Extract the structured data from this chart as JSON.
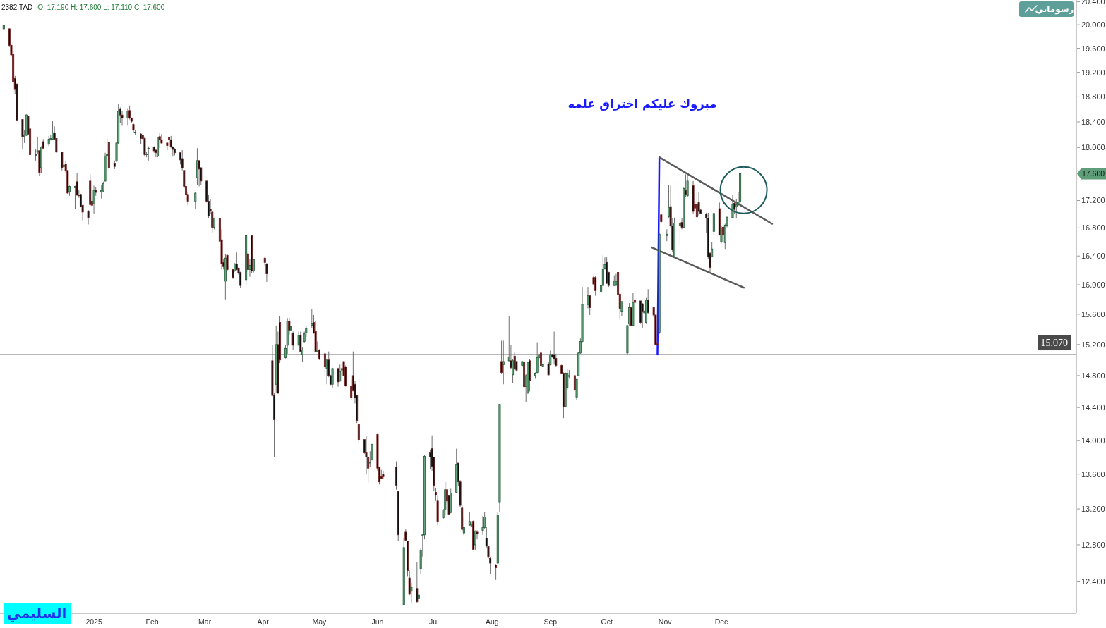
{
  "chart_data": {
    "type": "candlestick",
    "title": "2382.TAD",
    "subtitle": "O: 17.190 H: 17.600 L: 17.110 C: 17.600",
    "annotations": [
      "مبروك عليكم اختراق علمه",
      "السليمي",
      "رسوماتي",
      "17.600"
    ],
    "log": true,
    "xlim": [
      "2024-11-12",
      "2026-06-08"
    ],
    "ylim": [
      12.07,
      20.43
    ],
    "xticks": [
      {
        "value": "2025-01-01",
        "label": "2025"
      },
      {
        "value": "2025-02-01",
        "label": "Feb"
      },
      {
        "value": "2025-03-01",
        "label": "Mar"
      },
      {
        "value": "2025-04-01",
        "label": "Apr"
      },
      {
        "value": "2025-05-01",
        "label": "May"
      },
      {
        "value": "2025-06-01",
        "label": "Jun"
      },
      {
        "value": "2025-07-01",
        "label": "Jul"
      },
      {
        "value": "2025-08-01",
        "label": "Aug"
      },
      {
        "value": "2025-09-01",
        "label": "Sep"
      },
      {
        "value": "2025-10-01",
        "label": "Oct"
      },
      {
        "value": "2025-11-01",
        "label": "Nov"
      },
      {
        "value": "2025-12-01",
        "label": "Dec"
      }
    ],
    "yticks": [
      {
        "value": 12.4,
        "label": "12.400"
      },
      {
        "value": 12.8,
        "label": "12.800"
      },
      {
        "value": 13.2,
        "label": "13.200"
      },
      {
        "value": 13.6,
        "label": "13.600"
      },
      {
        "value": 14.0,
        "label": "14.000"
      },
      {
        "value": 14.4,
        "label": "14.400"
      },
      {
        "value": 14.8,
        "label": "14.800"
      },
      {
        "value": 15.2,
        "label": "15.200"
      },
      {
        "value": 15.6,
        "label": "15.600"
      },
      {
        "value": 16.0,
        "label": "16.000"
      },
      {
        "value": 16.4,
        "label": "16.400"
      },
      {
        "value": 16.8,
        "label": "16.800"
      },
      {
        "value": 17.2,
        "label": "17.200"
      },
      {
        "value": 18.0,
        "label": "18.000"
      },
      {
        "value": 18.4,
        "label": "18.400"
      },
      {
        "value": 18.8,
        "label": "18.800"
      },
      {
        "value": 19.2,
        "label": "19.200"
      },
      {
        "value": 19.6,
        "label": "19.600"
      },
      {
        "value": 20.0,
        "label": "20.000"
      },
      {
        "value": 20.4,
        "label": "20.400"
      }
    ],
    "ref_lines": [
      {
        "axis": "y",
        "value": 15.07,
        "label": "15.070",
        "color": "#9e9e9e"
      }
    ],
    "series": [
      {
        "type": "line",
        "x": [
          "2025-10-28",
          "2025-10-29"
        ],
        "values": [
          15.07,
          17.85
        ],
        "color": "#1a1aff"
      },
      {
        "type": "line",
        "x": [
          "2025-10-29",
          "2025-12-28"
        ],
        "values": [
          17.85,
          16.86
        ],
        "color": "#5a5a5a"
      },
      {
        "type": "line",
        "x": [
          "2025-10-25",
          "2025-12-13"
        ],
        "values": [
          16.52,
          15.96
        ],
        "color": "#5a5a5a"
      }
    ],
    "x": [
      "2024-11-14",
      "2024-11-17",
      "2024-11-18",
      "2024-11-19",
      "2024-11-20",
      "2024-11-21",
      "2024-11-24",
      "2024-11-25",
      "2024-11-26",
      "2024-11-27",
      "2024-11-28",
      "2024-12-01",
      "2024-12-02",
      "2024-12-03",
      "2024-12-04",
      "2024-12-05",
      "2024-12-08",
      "2024-12-09",
      "2024-12-10",
      "2024-12-11",
      "2024-12-12",
      "2024-12-15",
      "2024-12-16",
      "2024-12-17",
      "2024-12-18",
      "2024-12-19",
      "2024-12-22",
      "2024-12-23",
      "2024-12-24",
      "2024-12-25",
      "2024-12-26",
      "2024-12-29",
      "2024-12-30",
      "2024-12-31",
      "2025-01-01",
      "2025-01-02",
      "2025-01-05",
      "2025-01-06",
      "2025-01-07",
      "2025-01-08",
      "2025-01-09",
      "2025-01-12",
      "2025-01-13",
      "2025-01-14",
      "2025-01-15",
      "2025-01-16",
      "2025-01-19",
      "2025-01-20",
      "2025-01-21",
      "2025-01-22",
      "2025-01-23",
      "2025-01-26",
      "2025-01-27",
      "2025-01-28",
      "2025-01-29",
      "2025-01-30",
      "2025-02-02",
      "2025-02-03",
      "2025-02-04",
      "2025-02-05",
      "2025-02-06",
      "2025-02-09",
      "2025-02-10",
      "2025-02-11",
      "2025-02-12",
      "2025-02-13",
      "2025-02-16",
      "2025-02-17",
      "2025-02-18",
      "2025-02-19",
      "2025-02-20",
      "2025-02-24",
      "2025-02-25",
      "2025-02-26",
      "2025-02-27",
      "2025-03-02",
      "2025-03-03",
      "2025-03-04",
      "2025-03-05",
      "2025-03-06",
      "2025-03-09",
      "2025-03-10",
      "2025-03-11",
      "2025-03-12",
      "2025-03-13",
      "2025-03-16",
      "2025-03-17",
      "2025-03-18",
      "2025-03-19",
      "2025-03-20",
      "2025-03-23",
      "2025-03-24",
      "2025-03-25",
      "2025-03-26",
      "2025-03-27",
      "2025-04-02",
      "2025-04-03",
      "2025-04-06",
      "2025-04-07",
      "2025-04-08",
      "2025-04-09",
      "2025-04-10",
      "2025-04-13",
      "2025-04-14",
      "2025-04-15",
      "2025-04-16",
      "2025-04-17",
      "2025-04-20",
      "2025-04-21",
      "2025-04-22",
      "2025-04-23",
      "2025-04-24",
      "2025-04-27",
      "2025-04-28",
      "2025-04-29",
      "2025-04-30",
      "2025-05-01",
      "2025-05-04",
      "2025-05-05",
      "2025-05-06",
      "2025-05-07",
      "2025-05-08",
      "2025-05-11",
      "2025-05-12",
      "2025-05-13",
      "2025-05-14",
      "2025-05-15",
      "2025-05-18",
      "2025-05-19",
      "2025-05-20",
      "2025-05-21",
      "2025-05-22",
      "2025-05-25",
      "2025-05-26",
      "2025-05-27",
      "2025-05-28",
      "2025-05-29",
      "2025-06-01",
      "2025-06-02",
      "2025-06-03",
      "2025-06-04",
      "2025-06-11",
      "2025-06-12",
      "2025-06-15",
      "2025-06-16",
      "2025-06-17",
      "2025-06-18",
      "2025-06-19",
      "2025-06-22",
      "2025-06-23",
      "2025-06-24",
      "2025-06-25",
      "2025-06-26",
      "2025-06-29",
      "2025-06-30",
      "2025-07-01",
      "2025-07-02",
      "2025-07-03",
      "2025-07-06",
      "2025-07-07",
      "2025-07-08",
      "2025-07-09",
      "2025-07-10",
      "2025-07-13",
      "2025-07-14",
      "2025-07-15",
      "2025-07-16",
      "2025-07-17",
      "2025-07-20",
      "2025-07-21",
      "2025-07-22",
      "2025-07-23",
      "2025-07-24",
      "2025-07-27",
      "2025-07-28",
      "2025-07-29",
      "2025-07-30",
      "2025-07-31",
      "2025-08-03",
      "2025-08-04",
      "2025-08-05",
      "2025-08-06",
      "2025-08-07",
      "2025-08-10",
      "2025-08-11",
      "2025-08-12",
      "2025-08-13",
      "2025-08-14",
      "2025-08-17",
      "2025-08-18",
      "2025-08-19",
      "2025-08-20",
      "2025-08-21",
      "2025-08-24",
      "2025-08-25",
      "2025-08-26",
      "2025-08-27",
      "2025-08-28",
      "2025-08-31",
      "2025-09-01",
      "2025-09-02",
      "2025-09-03",
      "2025-09-04",
      "2025-09-07",
      "2025-09-08",
      "2025-09-09",
      "2025-09-10",
      "2025-09-11",
      "2025-09-14",
      "2025-09-15",
      "2025-09-16",
      "2025-09-17",
      "2025-09-18",
      "2025-09-21",
      "2025-09-22",
      "2025-09-24",
      "2025-09-25",
      "2025-09-28",
      "2025-09-29",
      "2025-09-30",
      "2025-10-01",
      "2025-10-02",
      "2025-10-05",
      "2025-10-06",
      "2025-10-07",
      "2025-10-08",
      "2025-10-09",
      "2025-10-12",
      "2025-10-13",
      "2025-10-14",
      "2025-10-15",
      "2025-10-16",
      "2025-10-19",
      "2025-10-20",
      "2025-10-21",
      "2025-10-22",
      "2025-10-23",
      "2025-10-26",
      "2025-10-27",
      "2025-10-28",
      "2025-10-29",
      "2025-10-30",
      "2025-11-02",
      "2025-11-03",
      "2025-11-04",
      "2025-11-05",
      "2025-11-06",
      "2025-11-09",
      "2025-11-10",
      "2025-11-11",
      "2025-11-12",
      "2025-11-13",
      "2025-11-16",
      "2025-11-17",
      "2025-11-18",
      "2025-11-19",
      "2025-11-20",
      "2025-11-23",
      "2025-11-24",
      "2025-11-25",
      "2025-11-26",
      "2025-11-27",
      "2025-11-30",
      "2025-12-01",
      "2025-12-02",
      "2025-12-03",
      "2025-12-04",
      "2025-12-07",
      "2025-12-08",
      "2025-12-09",
      "2025-12-10",
      "2025-12-11"
    ],
    "ohlc": [
      [
        19.93,
        20.0,
        19.92,
        19.99
      ],
      [
        19.93,
        19.94,
        19.62,
        19.65
      ],
      [
        19.65,
        19.66,
        19.46,
        19.49
      ],
      [
        19.5,
        19.56,
        19.03,
        19.04
      ],
      [
        19.1,
        19.14,
        18.85,
        18.93
      ],
      [
        19.01,
        19.01,
        18.41,
        18.43
      ],
      [
        18.44,
        18.44,
        17.97,
        18.17
      ],
      [
        18.17,
        18.27,
        18.07,
        18.19
      ],
      [
        18.19,
        18.52,
        18.18,
        18.51
      ],
      [
        18.49,
        18.49,
        18.19,
        18.21
      ],
      [
        18.29,
        18.3,
        17.85,
        17.89
      ],
      [
        17.88,
        17.97,
        17.8,
        17.89
      ],
      [
        17.93,
        18.17,
        17.9,
        17.95
      ],
      [
        17.95,
        17.96,
        17.57,
        17.62
      ],
      [
        17.69,
        18.02,
        17.61,
        18.01
      ],
      [
        18.09,
        18.13,
        17.97,
        17.99
      ],
      [
        18.05,
        18.18,
        18.02,
        18.13
      ],
      [
        18.13,
        18.19,
        18.11,
        18.14
      ],
      [
        18.13,
        18.41,
        18.13,
        18.23
      ],
      [
        18.23,
        18.33,
        18.12,
        18.13
      ],
      [
        18.14,
        18.14,
        17.92,
        17.93
      ],
      [
        17.93,
        17.93,
        17.65,
        17.69
      ],
      [
        17.71,
        17.81,
        17.7,
        17.73
      ],
      [
        17.75,
        17.8,
        17.61,
        17.65
      ],
      [
        17.65,
        17.65,
        17.3,
        17.31
      ],
      [
        17.33,
        17.42,
        17.27,
        17.41
      ],
      [
        17.39,
        17.42,
        17.07,
        17.41
      ],
      [
        17.48,
        17.61,
        17.27,
        17.28
      ],
      [
        17.28,
        17.35,
        17.24,
        17.27
      ],
      [
        17.29,
        17.3,
        17.1,
        17.11
      ],
      [
        17.13,
        17.13,
        16.91,
        17.03
      ],
      [
        17.04,
        17.06,
        16.85,
        16.95
      ],
      [
        17.49,
        17.59,
        17.12,
        17.14
      ],
      [
        17.19,
        17.21,
        17.11,
        17.13
      ],
      [
        17.15,
        17.42,
        17.0,
        17.35
      ],
      [
        17.35,
        17.4,
        17.27,
        17.32
      ],
      [
        17.33,
        17.43,
        17.23,
        17.35
      ],
      [
        17.34,
        17.48,
        17.33,
        17.45
      ],
      [
        17.49,
        17.92,
        17.48,
        17.87
      ],
      [
        17.87,
        18.14,
        17.86,
        17.89
      ],
      [
        18.08,
        18.08,
        17.65,
        17.69
      ],
      [
        17.76,
        17.8,
        17.67,
        17.71
      ],
      [
        17.79,
        18.08,
        17.78,
        18.07
      ],
      [
        18.07,
        18.68,
        18.05,
        18.57
      ],
      [
        18.61,
        18.63,
        18.38,
        18.51
      ],
      [
        18.51,
        18.57,
        18.34,
        18.46
      ],
      [
        18.46,
        18.62,
        18.34,
        18.57
      ],
      [
        18.58,
        18.66,
        18.44,
        18.46
      ],
      [
        18.46,
        18.47,
        18.38,
        18.41
      ],
      [
        18.36,
        18.38,
        18.23,
        18.27
      ],
      [
        18.23,
        18.27,
        18.19,
        18.24
      ],
      [
        18.21,
        18.23,
        18.05,
        18.14
      ],
      [
        18.19,
        18.2,
        18.12,
        18.14
      ],
      [
        18.14,
        18.17,
        17.86,
        17.89
      ],
      [
        17.89,
        17.93,
        17.85,
        17.9
      ],
      [
        17.98,
        18.02,
        17.8,
        17.99
      ],
      [
        18.01,
        18.02,
        17.92,
        17.95
      ],
      [
        17.96,
        17.97,
        17.85,
        17.92
      ],
      [
        17.87,
        18.16,
        17.85,
        18.16
      ],
      [
        18.17,
        18.23,
        17.99,
        18.12
      ],
      [
        18.12,
        18.21,
        18.05,
        18.07
      ],
      [
        18.07,
        18.08,
        17.96,
        18.03
      ],
      [
        18.16,
        18.18,
        18.11,
        18.12
      ],
      [
        18.12,
        18.18,
        17.99,
        18.01
      ],
      [
        18.01,
        18.02,
        17.86,
        17.97
      ],
      [
        17.97,
        17.99,
        17.88,
        17.92
      ],
      [
        17.92,
        17.93,
        17.74,
        17.81
      ],
      [
        17.83,
        17.96,
        17.65,
        17.69
      ],
      [
        17.65,
        17.65,
        17.38,
        17.41
      ],
      [
        17.41,
        17.42,
        17.23,
        17.29
      ],
      [
        17.29,
        17.32,
        17.13,
        17.19
      ],
      [
        17.19,
        17.32,
        17.07,
        17.31
      ],
      [
        17.54,
        17.99,
        17.43,
        17.8
      ],
      [
        17.8,
        17.8,
        17.41,
        17.67
      ],
      [
        17.69,
        17.7,
        17.43,
        17.49
      ],
      [
        17.49,
        17.49,
        17.17,
        17.19
      ],
      [
        17.19,
        17.28,
        16.94,
        16.97
      ],
      [
        17.07,
        17.22,
        17.0,
        17.05
      ],
      [
        17.03,
        17.04,
        16.73,
        16.81
      ],
      [
        16.81,
        16.95,
        16.78,
        16.94
      ],
      [
        16.94,
        16.95,
        16.6,
        16.61
      ],
      [
        16.63,
        16.78,
        16.21,
        16.29
      ],
      [
        16.31,
        16.36,
        16.21,
        16.25
      ],
      [
        16.05,
        16.43,
        15.8,
        16.37
      ],
      [
        16.41,
        16.42,
        16.19,
        16.21
      ],
      [
        16.21,
        16.22,
        16.08,
        16.1
      ],
      [
        16.19,
        16.3,
        16.18,
        16.29
      ],
      [
        16.29,
        16.45,
        16.2,
        16.21
      ],
      [
        16.23,
        16.24,
        16.14,
        16.16
      ],
      [
        16.17,
        16.18,
        15.96,
        15.99
      ],
      [
        16.07,
        16.7,
        15.99,
        16.69
      ],
      [
        16.43,
        16.45,
        16.18,
        16.21
      ],
      [
        16.21,
        16.36,
        16.11,
        16.27
      ],
      [
        16.69,
        16.7,
        16.16,
        16.19
      ],
      [
        16.19,
        16.36,
        16.17,
        16.35
      ],
      [
        16.37,
        16.38,
        16.26,
        16.31
      ],
      [
        16.29,
        16.3,
        16.04,
        16.15
      ],
      [
        14.99,
        15.19,
        14.54,
        14.55
      ],
      [
        14.55,
        14.58,
        13.8,
        14.25
      ],
      [
        14.69,
        15.45,
        14.58,
        15.2
      ],
      [
        15.2,
        15.37,
        14.57,
        14.58
      ],
      [
        15.49,
        15.57,
        14.96,
        15.0
      ],
      [
        15.03,
        15.19,
        15.02,
        15.15
      ],
      [
        15.19,
        15.55,
        15.08,
        15.51
      ],
      [
        15.51,
        15.55,
        15.33,
        15.39
      ],
      [
        15.39,
        15.55,
        15.26,
        15.44
      ],
      [
        15.35,
        15.37,
        15.13,
        15.19
      ],
      [
        15.19,
        15.37,
        15.19,
        15.32
      ],
      [
        15.32,
        15.37,
        15.1,
        15.11
      ],
      [
        15.07,
        15.16,
        14.98,
        15.13
      ],
      [
        15.24,
        15.37,
        15.22,
        15.34
      ],
      [
        15.35,
        15.45,
        15.3,
        15.41
      ],
      [
        15.45,
        15.67,
        15.42,
        15.48
      ],
      [
        15.49,
        15.59,
        15.34,
        15.35
      ],
      [
        15.37,
        15.51,
        15.1,
        15.11
      ],
      [
        15.11,
        15.24,
        15.1,
        15.13
      ],
      [
        15.13,
        15.14,
        15.0,
        15.01
      ],
      [
        15.08,
        15.11,
        14.8,
        14.91
      ],
      [
        14.89,
        15.01,
        14.69,
        15.0
      ],
      [
        15.0,
        15.11,
        14.78,
        14.8
      ],
      [
        14.8,
        14.81,
        14.68,
        14.69
      ],
      [
        14.69,
        14.9,
        14.65,
        14.89
      ],
      [
        14.89,
        14.9,
        14.66,
        14.72
      ],
      [
        14.73,
        14.94,
        14.72,
        14.85
      ],
      [
        14.87,
        14.96,
        14.8,
        14.89
      ],
      [
        14.98,
        14.98,
        14.79,
        14.8
      ],
      [
        14.91,
        14.93,
        14.66,
        14.67
      ],
      [
        14.67,
        14.75,
        14.5,
        14.52
      ],
      [
        14.8,
        15.11,
        14.6,
        14.61
      ],
      [
        14.69,
        14.73,
        14.45,
        14.52
      ],
      [
        14.55,
        14.56,
        14.21,
        14.24
      ],
      [
        14.19,
        14.21,
        13.98,
        14.01
      ],
      [
        14.01,
        14.01,
        13.84,
        13.85
      ],
      [
        13.85,
        14.05,
        13.6,
        13.8
      ],
      [
        13.8,
        13.8,
        13.5,
        13.67
      ],
      [
        13.73,
        13.87,
        13.68,
        13.74
      ],
      [
        13.77,
        13.96,
        13.76,
        13.95
      ],
      [
        14.07,
        14.08,
        13.64,
        13.67
      ],
      [
        13.68,
        13.68,
        13.48,
        13.51
      ],
      [
        13.57,
        13.65,
        13.54,
        13.55
      ],
      [
        13.6,
        13.64,
        13.54,
        13.57
      ],
      [
        13.68,
        13.75,
        13.42,
        13.47
      ],
      [
        13.4,
        13.4,
        12.84,
        12.91
      ],
      [
        12.16,
        12.88,
        12.15,
        12.77
      ],
      [
        12.94,
        12.97,
        12.84,
        12.85
      ],
      [
        12.84,
        12.84,
        12.46,
        12.52
      ],
      [
        12.44,
        12.52,
        12.26,
        12.27
      ],
      [
        12.3,
        12.39,
        12.18,
        12.34
      ],
      [
        12.33,
        12.61,
        12.18,
        12.19
      ],
      [
        12.22,
        12.31,
        12.18,
        12.26
      ],
      [
        12.54,
        12.76,
        12.48,
        12.74
      ],
      [
        12.9,
        12.92,
        12.67,
        12.91
      ],
      [
        12.91,
        13.83,
        12.86,
        13.81
      ],
      [
        13.85,
        13.89,
        13.66,
        13.8
      ],
      [
        13.9,
        14.06,
        13.64,
        13.69
      ],
      [
        13.8,
        13.8,
        13.4,
        13.47
      ],
      [
        13.39,
        13.44,
        13.29,
        13.36
      ],
      [
        13.29,
        13.35,
        13.02,
        13.06
      ],
      [
        13.1,
        13.2,
        13.09,
        13.19
      ],
      [
        13.19,
        13.51,
        13.13,
        13.42
      ],
      [
        13.42,
        13.51,
        13.25,
        13.29
      ],
      [
        13.35,
        13.36,
        13.13,
        13.14
      ],
      [
        13.16,
        13.43,
        13.15,
        13.38
      ],
      [
        13.39,
        13.9,
        13.38,
        13.71
      ],
      [
        13.73,
        13.73,
        13.46,
        13.51
      ],
      [
        13.51,
        13.53,
        13.22,
        13.24
      ],
      [
        13.21,
        13.24,
        12.95,
        12.97
      ],
      [
        12.93,
        13.11,
        12.9,
        12.99
      ],
      [
        13.02,
        13.16,
        13.01,
        13.06
      ],
      [
        13.01,
        13.06,
        13.0,
        13.03
      ],
      [
        13.06,
        13.07,
        12.74,
        12.75
      ],
      [
        12.8,
        12.96,
        12.74,
        12.95
      ],
      [
        12.94,
        12.96,
        12.86,
        12.92
      ],
      [
        12.96,
        13.12,
        12.91,
        12.99
      ],
      [
        12.99,
        13.16,
        12.98,
        13.11
      ],
      [
        12.87,
        13.0,
        12.77,
        12.79
      ],
      [
        12.78,
        12.79,
        12.65,
        12.67
      ],
      [
        12.65,
        12.67,
        12.48,
        12.6
      ],
      [
        12.58,
        12.59,
        12.42,
        12.55
      ],
      [
        12.6,
        13.16,
        12.59,
        13.13
      ],
      [
        13.28,
        14.44,
        13.17,
        14.44
      ],
      [
        14.98,
        15.25,
        14.82,
        14.84
      ],
      [
        14.94,
        15.25,
        14.69,
        14.98
      ],
      [
        14.99,
        15.57,
        14.98,
        15.04
      ],
      [
        14.99,
        15.19,
        14.89,
        14.9
      ],
      [
        14.81,
        15.01,
        14.71,
        14.99
      ],
      [
        15.05,
        15.1,
        14.87,
        14.89
      ],
      [
        14.98,
        14.99,
        14.85,
        14.87
      ],
      [
        14.93,
        14.99,
        14.92,
        14.98
      ],
      [
        14.97,
        14.98,
        14.65,
        14.66
      ],
      [
        14.66,
        14.82,
        14.47,
        14.8
      ],
      [
        14.58,
        14.98,
        14.57,
        14.97
      ],
      [
        14.99,
        15.01,
        14.6,
        14.74
      ],
      [
        14.8,
        14.84,
        14.76,
        14.83
      ],
      [
        14.84,
        15.23,
        14.83,
        15.03
      ],
      [
        15.03,
        15.08,
        15.02,
        15.07
      ],
      [
        15.09,
        15.21,
        14.91,
        14.93
      ],
      [
        14.92,
        14.95,
        14.91,
        14.94
      ],
      [
        14.95,
        14.98,
        14.8,
        14.81
      ],
      [
        14.94,
        15.12,
        14.93,
        15.07
      ],
      [
        15.07,
        15.08,
        15.03,
        15.04
      ],
      [
        15.07,
        15.37,
        14.94,
        15.01
      ],
      [
        15.02,
        15.08,
        14.91,
        14.93
      ],
      [
        14.93,
        14.94,
        14.82,
        14.83
      ],
      [
        14.83,
        14.84,
        14.27,
        14.41
      ],
      [
        14.41,
        14.84,
        14.4,
        14.83
      ],
      [
        14.65,
        14.89,
        14.62,
        14.83
      ],
      [
        14.79,
        14.87,
        14.76,
        14.8
      ],
      [
        14.8,
        14.81,
        14.6,
        14.62
      ],
      [
        14.53,
        14.76,
        14.49,
        14.75
      ],
      [
        14.8,
        15.1,
        14.79,
        15.09
      ],
      [
        15.09,
        15.28,
        15.08,
        15.24
      ],
      [
        15.24,
        15.97,
        15.23,
        15.73
      ],
      [
        15.73,
        15.97,
        15.68,
        15.85
      ],
      [
        15.85,
        15.85,
        15.59,
        15.69
      ],
      [
        16.1,
        16.13,
        16.0,
        16.01
      ],
      [
        16.1,
        16.12,
        15.85,
        15.92
      ],
      [
        15.91,
        15.99,
        15.9,
        15.99
      ],
      [
        15.99,
        16.41,
        15.98,
        16.21
      ],
      [
        16.23,
        16.38,
        16.21,
        16.28
      ],
      [
        16.31,
        16.38,
        16.01,
        16.02
      ],
      [
        16.17,
        16.18,
        15.97,
        15.99
      ],
      [
        15.99,
        16.13,
        15.98,
        16.05
      ],
      [
        16.0,
        16.15,
        15.98,
        16.05
      ],
      [
        16.17,
        16.18,
        15.86,
        15.87
      ],
      [
        15.87,
        15.89,
        15.53,
        15.68
      ],
      [
        15.64,
        15.78,
        15.58,
        15.77
      ],
      [
        15.09,
        15.45,
        15.07,
        15.45
      ],
      [
        15.47,
        15.75,
        15.45,
        15.69
      ],
      [
        15.69,
        15.7,
        15.44,
        15.45
      ],
      [
        15.45,
        15.89,
        15.44,
        15.76
      ],
      [
        15.79,
        15.82,
        15.58,
        15.76
      ],
      [
        15.78,
        15.78,
        15.48,
        15.49
      ],
      [
        15.74,
        15.75,
        15.42,
        15.64
      ],
      [
        15.62,
        15.65,
        15.61,
        15.64
      ],
      [
        15.49,
        15.82,
        15.48,
        15.79
      ],
      [
        15.79,
        15.94,
        15.61,
        15.62
      ],
      [
        15.69,
        15.7,
        15.56,
        15.59
      ],
      [
        15.59,
        15.59,
        15.19,
        15.2
      ],
      [
        15.21,
        15.22,
        15.19,
        15.2
      ],
      [
        15.36,
        16.73,
        15.34,
        16.71
      ],
      [
        16.99,
        17.01,
        16.87,
        16.89
      ],
      [
        16.69,
        16.78,
        16.61,
        16.71
      ],
      [
        16.96,
        17.43,
        16.95,
        17.1
      ],
      [
        17.11,
        17.42,
        16.81,
        16.83
      ],
      [
        16.83,
        16.94,
        16.46,
        16.49
      ],
      [
        16.39,
        16.95,
        16.38,
        16.87
      ],
      [
        16.83,
        16.95,
        16.56,
        16.87
      ],
      [
        16.88,
        16.94,
        16.78,
        16.81
      ],
      [
        16.81,
        17.39,
        16.8,
        17.38
      ],
      [
        17.35,
        17.59,
        17.25,
        17.29
      ],
      [
        17.27,
        17.58,
        17.25,
        17.49
      ],
      [
        17.42,
        17.49,
        17.01,
        17.04
      ],
      [
        17.14,
        17.19,
        17.07,
        17.09
      ],
      [
        17.14,
        17.33,
        16.94,
        16.96
      ],
      [
        17.17,
        17.33,
        16.97,
        17.04
      ],
      [
        17.06,
        17.07,
        17.0,
        17.01
      ],
      [
        17.0,
        17.02,
        16.73,
        16.95
      ],
      [
        16.94,
        17.02,
        16.36,
        16.39
      ],
      [
        16.44,
        16.46,
        16.16,
        16.24
      ],
      [
        16.39,
        16.6,
        16.38,
        16.5
      ],
      [
        16.75,
        17.02,
        16.7,
        17.01
      ],
      [
        17.08,
        17.17,
        16.69,
        16.7
      ],
      [
        16.6,
        16.83,
        16.58,
        16.8
      ],
      [
        16.81,
        16.83,
        16.58,
        16.7
      ],
      [
        16.59,
        16.86,
        16.5,
        16.84
      ],
      [
        16.84,
        16.97,
        16.81,
        16.95
      ],
      [
        16.95,
        17.29,
        16.94,
        17.15
      ],
      [
        17.16,
        17.19,
        17.0,
        17.07
      ],
      [
        17.11,
        17.22,
        16.94,
        17.14
      ],
      [
        17.14,
        17.33,
        17.12,
        17.18
      ],
      [
        17.19,
        17.6,
        17.11,
        17.6
      ]
    ]
  }
}
